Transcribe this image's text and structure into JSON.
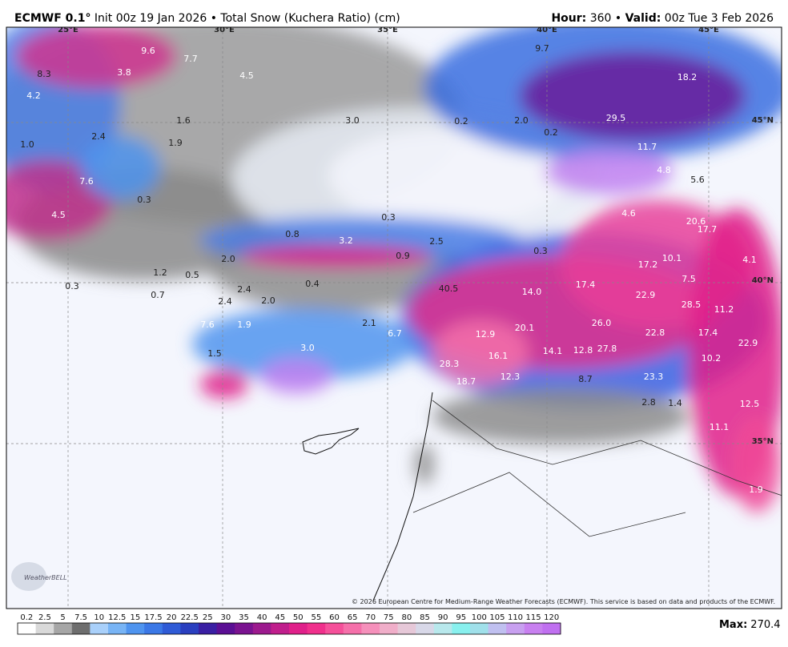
{
  "header": {
    "model": "ECMWF 0.1°",
    "init": " Init 00z 19 Jan 2026 • Total Snow (Kuchera Ratio) (cm)",
    "hour_label": "Hour:",
    "hour": " 360 • ",
    "valid_label": "Valid:",
    "valid": " 00z Tue 3 Feb 2026"
  },
  "graticule": [
    "25°E",
    "30°E",
    "35°E",
    "40°E",
    "45°E",
    "45°N",
    "40°N",
    "35°N"
  ],
  "map_labels": [
    "8.3",
    "9.6",
    "7.7",
    "3.8",
    "4.5",
    "4.2",
    "1.6",
    "3.0",
    "0.2",
    "2.0",
    "0.2",
    "9.7",
    "18.2",
    "29.5",
    "11.7",
    "4.8",
    "5.6",
    "1.0",
    "2.4",
    "1.9",
    "7.6",
    "0.3",
    "4.5",
    "4.6",
    "20.6",
    "17.7",
    "0.3",
    "0.8",
    "3.2",
    "2.5",
    "0.3",
    "0.9",
    "2.0",
    "1.2",
    "0.5",
    "17.2",
    "10.1",
    "4.1",
    "0.3",
    "2.4",
    "0.4",
    "40.5",
    "14.0",
    "17.4",
    "22.9",
    "7.5",
    "28.5",
    "11.2",
    "0.7",
    "2.4",
    "2.0",
    "7.6",
    "1.9",
    "2.1",
    "6.7",
    "26.0",
    "20.1",
    "12.9",
    "22.8",
    "17.4",
    "22.9",
    "1.5",
    "3.0",
    "16.1",
    "14.1",
    "12.8",
    "27.8",
    "10.2",
    "28.3",
    "18.7",
    "12.3",
    "8.7",
    "23.3",
    "2.8",
    "1.4",
    "12.5",
    "11.1",
    "1.9"
  ],
  "copyright": "© 2026 European Centre for Medium-Range Weather Forecasts (ECMWF). This service is based on data and products of the ECMWF.",
  "logo": "WeatherBELL",
  "colorbar": {
    "ticks": [
      0.2,
      2.5,
      5,
      7.5,
      10,
      12.5,
      15,
      17.5,
      20,
      22.5,
      25,
      30,
      35,
      40,
      45,
      50,
      55,
      60,
      65,
      70,
      75,
      80,
      85,
      90,
      95,
      100,
      105,
      110,
      115,
      120
    ],
    "colors": [
      "#ffffff",
      "#d9d9d9",
      "#a6a6a6",
      "#6e6e6e",
      "#a9d0fa",
      "#78b4f5",
      "#4f94ef",
      "#3b78e6",
      "#2f5bd6",
      "#2a3fbf",
      "#3a1fa3",
      "#5b0f94",
      "#7a1390",
      "#9c1a8e",
      "#c01e8c",
      "#e0208a",
      "#f0308c",
      "#f5509a",
      "#f570aa",
      "#f590bb",
      "#f0aec9",
      "#e6c8d8",
      "#d8d8e8",
      "#b8e8ec",
      "#88f0ee",
      "#a0e0ea",
      "#c0c0f0",
      "#c8a0f0",
      "#c880f0",
      "#c070f0"
    ]
  },
  "max": {
    "label": "Max:",
    "value": "270.4"
  }
}
